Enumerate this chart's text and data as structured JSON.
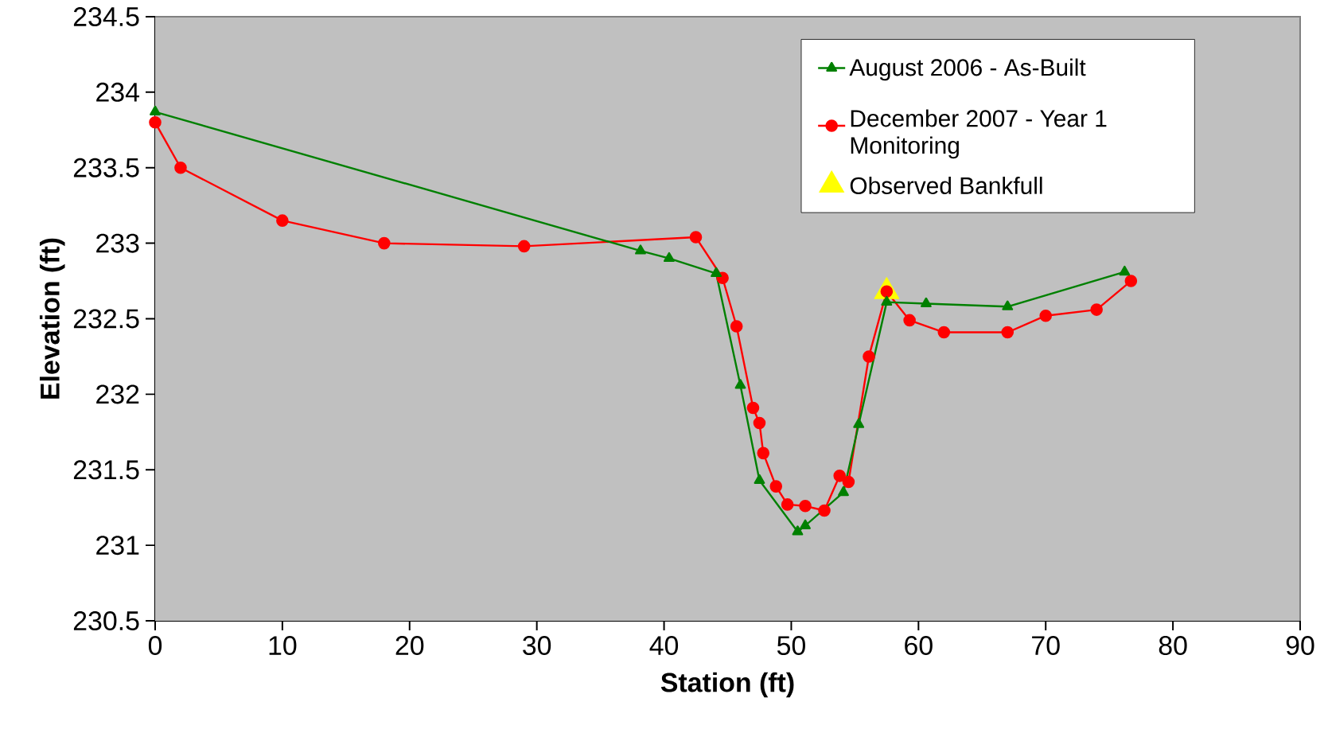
{
  "chart_data": {
    "type": "line",
    "xlabel": "Station (ft)",
    "ylabel": "Elevation (ft)",
    "xlim": [
      0,
      90
    ],
    "ylim": [
      230.5,
      234.5
    ],
    "xticks": [
      0,
      10,
      20,
      30,
      40,
      50,
      60,
      70,
      80,
      90
    ],
    "yticks": [
      230.5,
      231,
      231.5,
      232,
      232.5,
      233,
      233.5,
      234,
      234.5
    ],
    "legend": "top right",
    "series": [
      {
        "name": "August 2006 - As-Built",
        "color": "#008000",
        "marker": "triangle",
        "x": [
          0,
          38.15,
          40.4,
          44.1,
          46.0,
          47.5,
          50.5,
          51.1,
          54.1,
          55.3,
          57.5,
          60.6,
          67.0,
          76.2
        ],
        "values": [
          233.87,
          232.95,
          232.9,
          232.8,
          232.06,
          231.43,
          231.09,
          231.13,
          231.35,
          231.8,
          232.61,
          232.6,
          232.58,
          232.81
        ]
      },
      {
        "name": "December 2007 - Year 1 Monitoring",
        "color": "#ff0000",
        "marker": "circle",
        "x": [
          0,
          2.0,
          10.0,
          18.0,
          29.0,
          42.5,
          44.6,
          45.7,
          47.0,
          47.5,
          47.8,
          48.8,
          49.7,
          51.1,
          52.6,
          53.8,
          54.5,
          56.1,
          57.5,
          59.3,
          62.0,
          67.0,
          70.0,
          74.0,
          76.7
        ],
        "values": [
          233.8,
          233.5,
          233.15,
          233.0,
          232.98,
          233.04,
          232.77,
          232.45,
          231.91,
          231.81,
          231.61,
          231.39,
          231.27,
          231.26,
          231.23,
          231.46,
          231.42,
          232.25,
          232.68,
          232.49,
          232.41,
          232.41,
          232.52,
          232.56,
          232.75
        ]
      },
      {
        "name": "Observed Bankfull",
        "type": "scatter",
        "color": "#ffff00",
        "marker": "triangle",
        "x": [
          57.5
        ],
        "values": [
          232.68
        ]
      }
    ]
  }
}
